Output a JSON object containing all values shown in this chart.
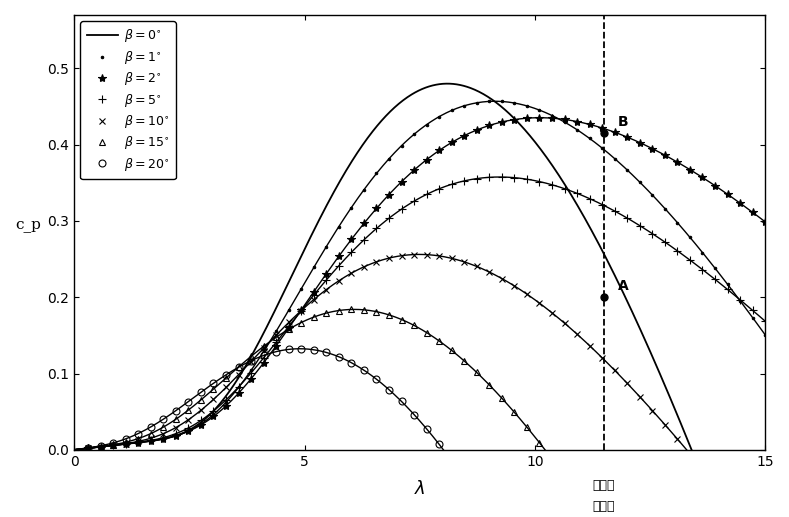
{
  "title": "",
  "xlabel": "λ",
  "ylabel": "c_p",
  "xlim": [
    0,
    15
  ],
  "ylim": [
    0.0,
    0.57
  ],
  "xticks": [
    0,
    5,
    10,
    15
  ],
  "yticks": [
    0.0,
    0.1,
    0.2,
    0.3,
    0.4,
    0.5
  ],
  "vline_x": 11.5,
  "vline_label_line1": "当前叶",
  "vline_label_line2": "尖速比",
  "point_A": [
    11.5,
    0.2
  ],
  "point_B": [
    11.5,
    0.415
  ],
  "betas": [
    0,
    1,
    2,
    5,
    10,
    15,
    20
  ],
  "beta_labels": [
    "$\\beta = 0^{\\circ}$",
    "$\\beta = 1^{\\circ}$",
    "$\\beta = 2^{\\circ}$",
    "$\\beta = 5^{\\circ}$",
    "$\\beta = 10^{\\circ}$",
    "$\\beta = 15^{\\circ}$",
    "$\\beta = 20^{\\circ}$"
  ],
  "markers": [
    "None",
    ".",
    "*",
    "+",
    "x",
    "^",
    "o"
  ],
  "markersizes": [
    0,
    3.5,
    6,
    6,
    5,
    5,
    5
  ],
  "colors": [
    "black",
    "black",
    "black",
    "black",
    "black",
    "black",
    "black"
  ],
  "figsize": [
    7.89,
    5.17
  ],
  "dpi": 100
}
